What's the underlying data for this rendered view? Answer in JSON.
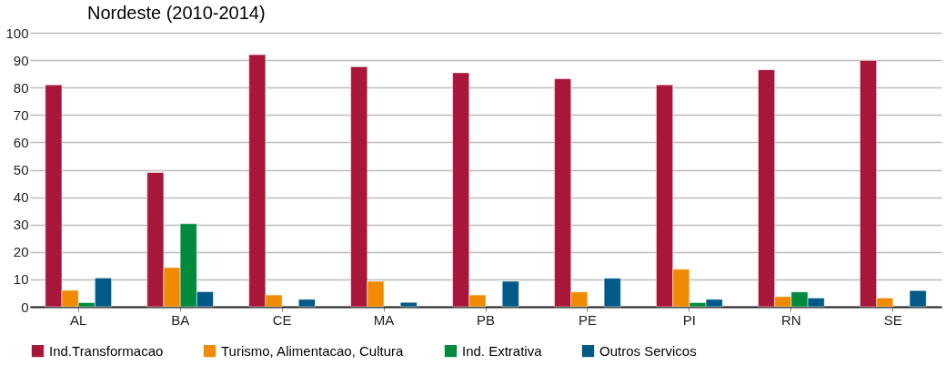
{
  "chart_data": {
    "type": "bar",
    "title": "Nordeste (2010-2014)",
    "categories": [
      "AL",
      "BA",
      "CE",
      "MA",
      "PB",
      "PE",
      "PI",
      "RN",
      "SE"
    ],
    "series": [
      {
        "name": "Ind.Transformacao",
        "color": "#a8173a",
        "values": [
          81,
          49,
          92,
          87.6,
          85.4,
          83.2,
          81,
          86.5,
          89.9
        ]
      },
      {
        "name": "Turismo, Alimentacao, Cultura",
        "color": "#f08a00",
        "values": [
          6,
          14.3,
          4.3,
          9.3,
          4.3,
          5.4,
          13.7,
          3.7,
          3.2
        ]
      },
      {
        "name": "Ind. Extrativa",
        "color": "#008a3c",
        "values": [
          1.5,
          30.3,
          null,
          null,
          null,
          null,
          1.5,
          5.4,
          null
        ]
      },
      {
        "name": "Outros Servicos",
        "color": "#005a87",
        "values": [
          10.5,
          5.5,
          2.7,
          1.6,
          9.3,
          10.4,
          2.7,
          3.2,
          5.9
        ]
      }
    ],
    "ylim": [
      0,
      100
    ],
    "yticks": [
      0,
      10,
      20,
      30,
      40,
      50,
      60,
      70,
      80,
      90,
      100
    ],
    "grid": "y",
    "legend": "bottom"
  }
}
